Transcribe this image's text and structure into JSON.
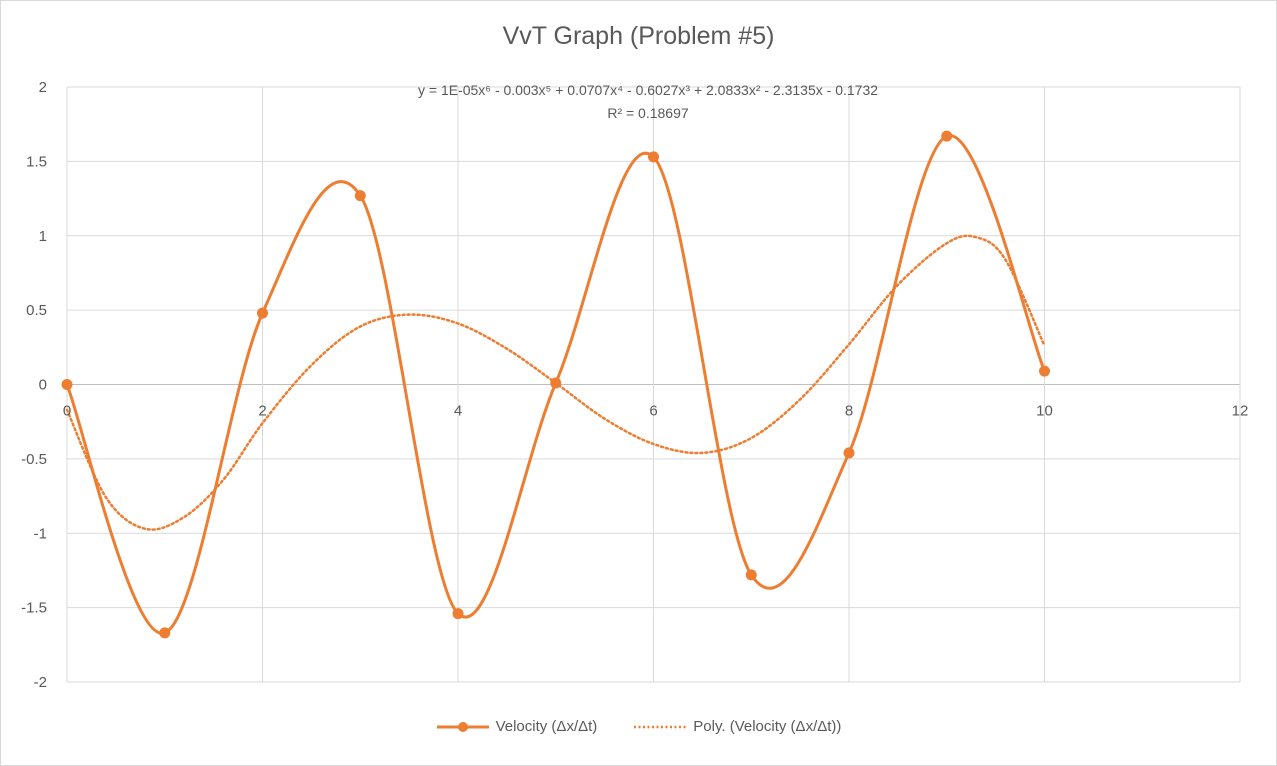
{
  "chart_data": {
    "type": "line",
    "title": "VvT Graph (Problem #5)",
    "xlabel": "",
    "ylabel": "",
    "xlim": [
      0,
      12
    ],
    "ylim": [
      -2,
      2
    ],
    "x_ticks": [
      "0",
      "2",
      "4",
      "6",
      "8",
      "10",
      "12"
    ],
    "y_ticks": [
      "2",
      "1.5",
      "1",
      "0.5",
      "0",
      "-0.5",
      "-1",
      "-1.5",
      "-2"
    ],
    "grid": true,
    "legend_position": "bottom",
    "series": [
      {
        "name": "Velocity (Δx/Δt)",
        "color": "#ED7D31",
        "x": [
          0,
          1,
          2,
          3,
          4,
          5,
          6,
          7,
          8,
          9,
          10
        ],
        "values": [
          0,
          -1.67,
          0.48,
          1.27,
          -1.54,
          0.01,
          1.53,
          -1.28,
          -0.46,
          1.67,
          0.09
        ]
      }
    ],
    "trendline": {
      "name": "Poly.  (Velocity (Δx/Δt))",
      "color": "#ED7D31",
      "style": "dotted",
      "order": 6,
      "x_range": [
        0,
        10
      ],
      "equation": "y = 1E-05x⁶ - 0.003x⁵ + 0.0707x⁴ - 0.6027x³ + 2.0833x² - 2.3135x - 0.1732",
      "r_squared": "R² = 0.18697",
      "approx_points": [
        [
          0,
          -0.17
        ],
        [
          0.4,
          -0.76
        ],
        [
          0.8,
          -0.97
        ],
        [
          1.2,
          -0.89
        ],
        [
          1.6,
          -0.64
        ],
        [
          2,
          -0.26
        ],
        [
          2.5,
          0.13
        ],
        [
          3,
          0.39
        ],
        [
          3.5,
          0.47
        ],
        [
          4,
          0.41
        ],
        [
          4.5,
          0.24
        ],
        [
          5,
          0.01
        ],
        [
          5.5,
          -0.23
        ],
        [
          6,
          -0.4
        ],
        [
          6.5,
          -0.46
        ],
        [
          7,
          -0.36
        ],
        [
          7.5,
          -0.1
        ],
        [
          8,
          0.27
        ],
        [
          8.5,
          0.67
        ],
        [
          9,
          0.95
        ],
        [
          9.3,
          0.99
        ],
        [
          9.6,
          0.84
        ],
        [
          10,
          0.26
        ]
      ]
    }
  }
}
